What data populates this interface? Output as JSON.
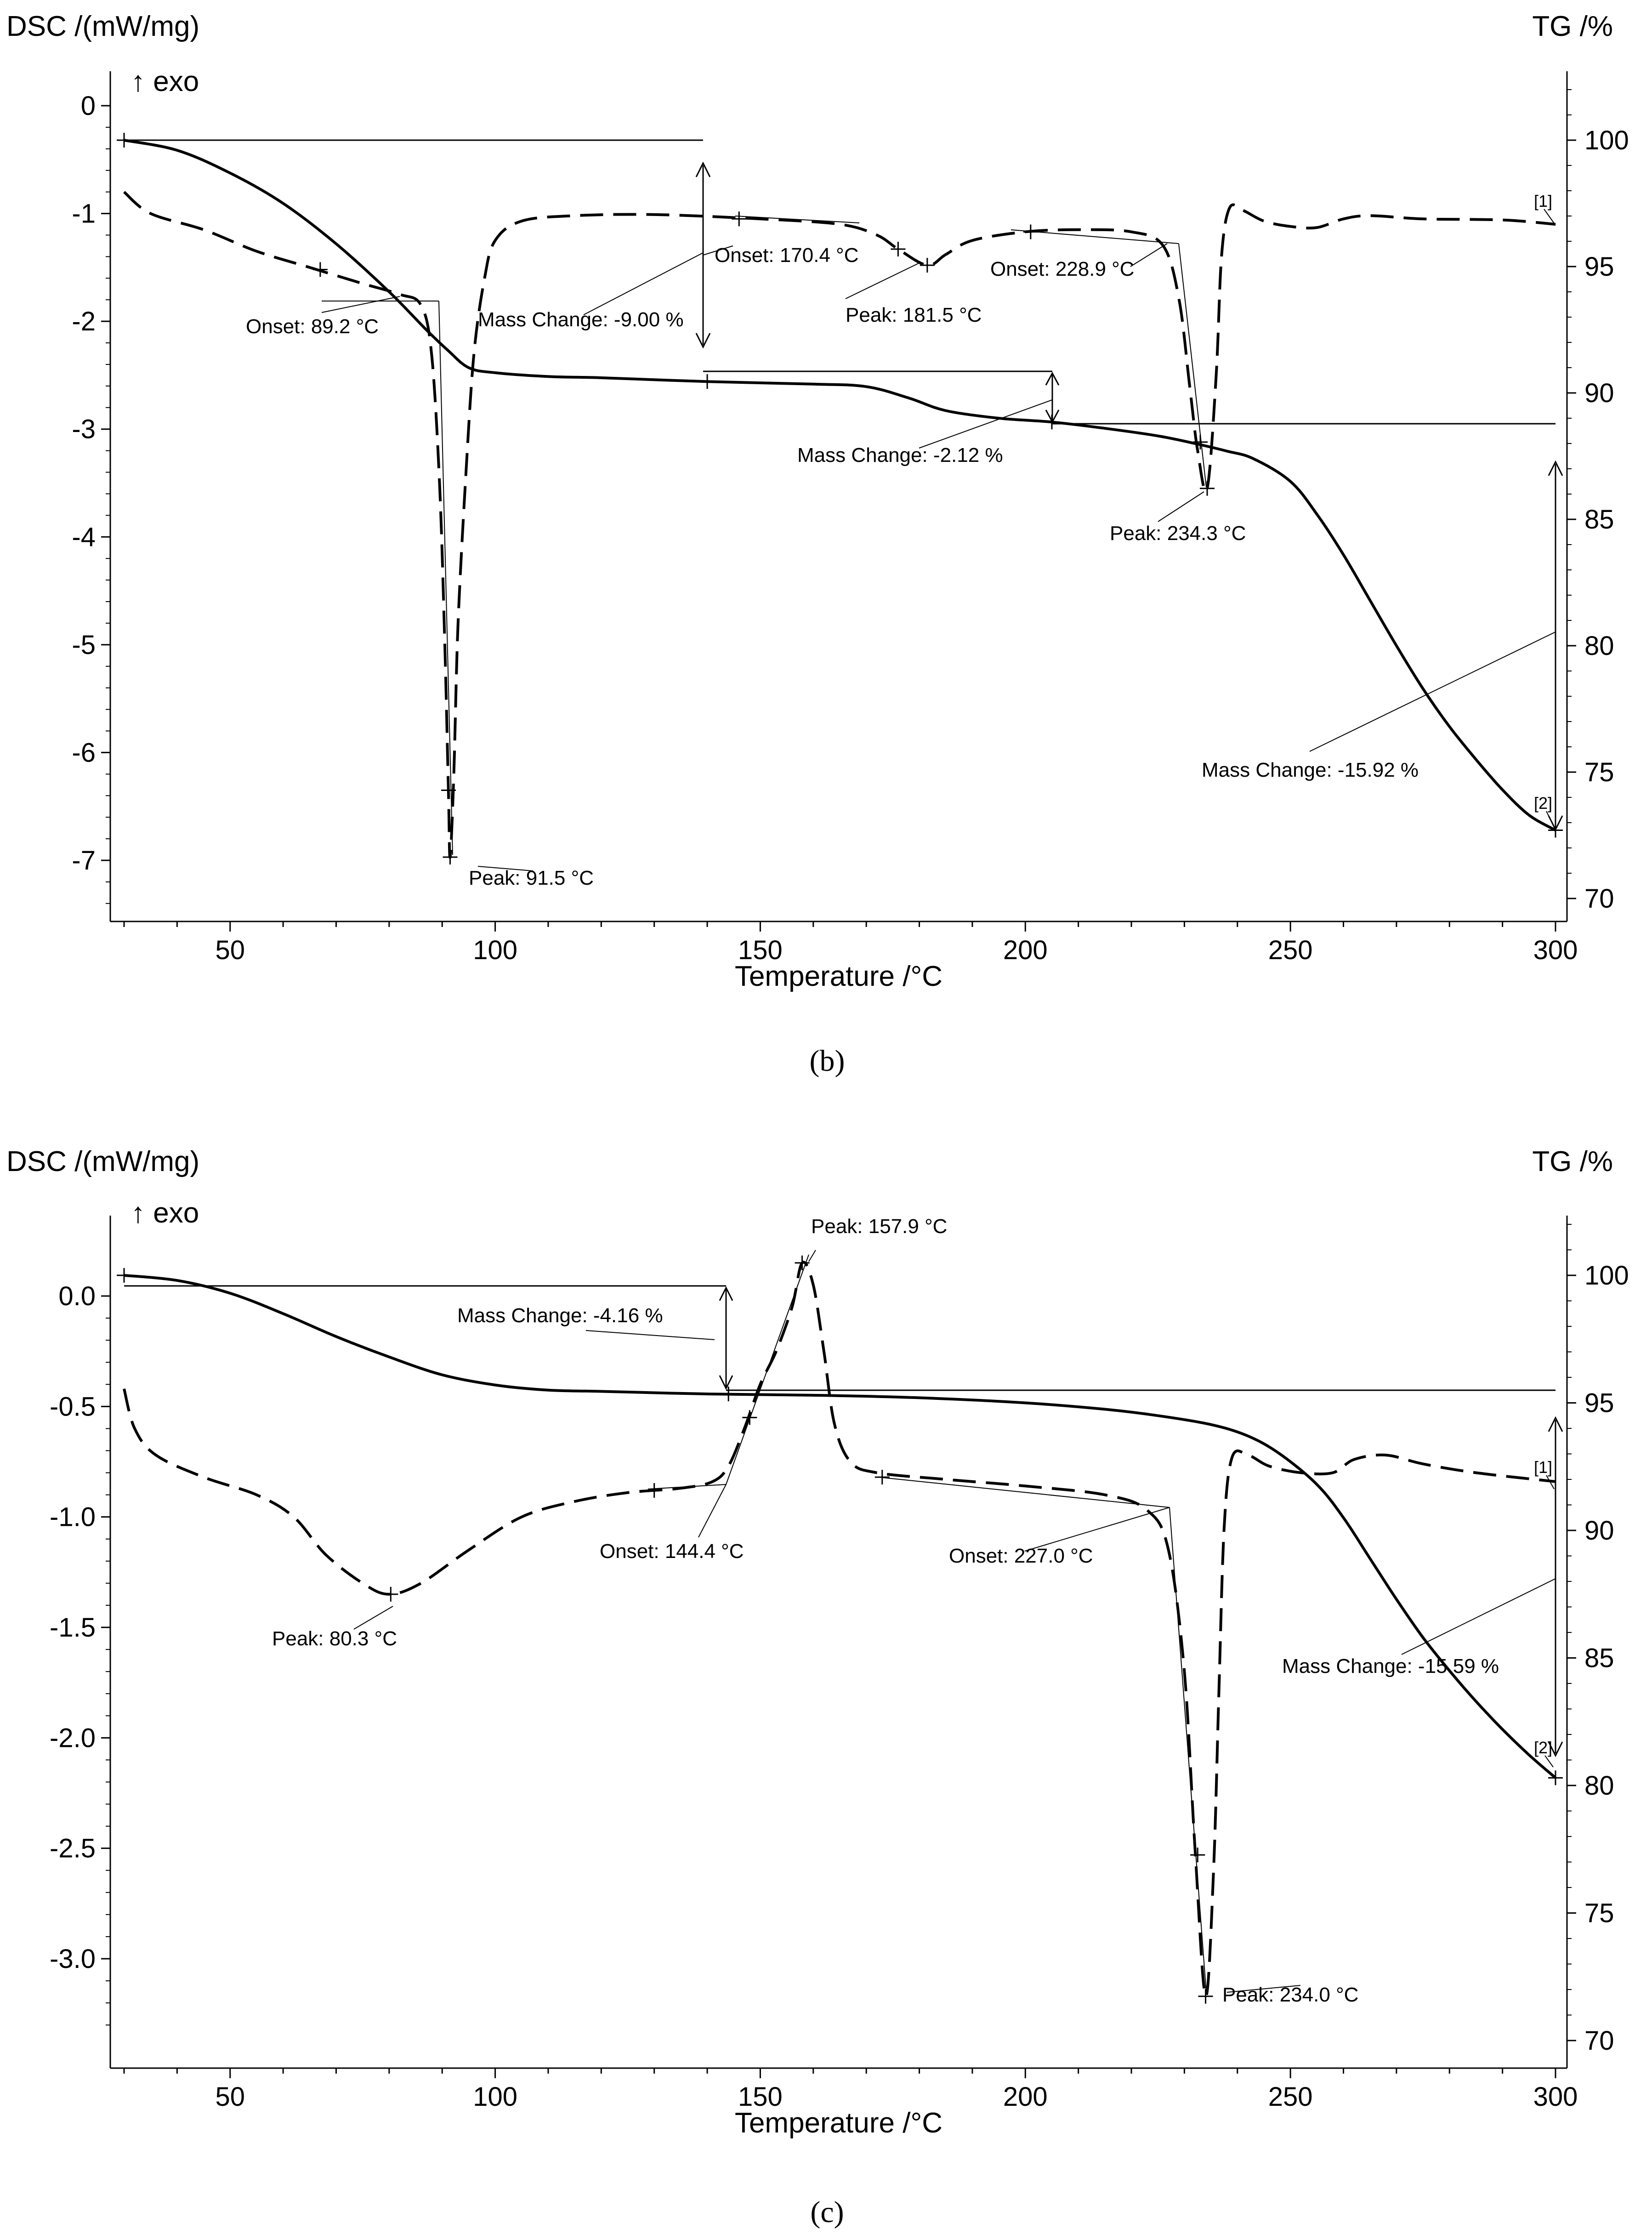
{
  "chart_data": [
    {
      "panel": "b",
      "caption": "(b)",
      "type": "line",
      "xlabel": "Temperature /°C",
      "ylabel_left": "DSC /(mW/mg)",
      "ylabel_right": "TG /%",
      "exo_label": "↑ exo",
      "xlim": [
        28,
        302
      ],
      "xticks": [
        50,
        100,
        150,
        200,
        250,
        300
      ],
      "ylim_left": [
        -7.45,
        0.3
      ],
      "yticks_left": [
        0,
        -1,
        -2,
        -3,
        -4,
        -5,
        -6,
        -7
      ],
      "ylim_right": [
        69.5,
        102.5
      ],
      "yticks_right": [
        70,
        75,
        80,
        85,
        90,
        95,
        100
      ],
      "series": [
        {
          "name": "DSC",
          "axis": "left",
          "style": "dashed",
          "points": [
            [
              30,
              -0.8
            ],
            [
              35,
              -1.0
            ],
            [
              45,
              -1.15
            ],
            [
              55,
              -1.35
            ],
            [
              65,
              -1.5
            ],
            [
              75,
              -1.65
            ],
            [
              82,
              -1.75
            ],
            [
              86,
              -1.85
            ],
            [
              88,
              -2.3
            ],
            [
              89.5,
              -3.5
            ],
            [
              90.5,
              -5.0
            ],
            [
              91.2,
              -6.4
            ],
            [
              91.5,
              -6.97
            ],
            [
              92.2,
              -6.2
            ],
            [
              93,
              -4.8
            ],
            [
              94.5,
              -3.4
            ],
            [
              96,
              -2.3
            ],
            [
              98,
              -1.6
            ],
            [
              100,
              -1.25
            ],
            [
              105,
              -1.07
            ],
            [
              115,
              -1.02
            ],
            [
              130,
              -1.01
            ],
            [
              150,
              -1.05
            ],
            [
              165,
              -1.1
            ],
            [
              172,
              -1.2
            ],
            [
              176,
              -1.33
            ],
            [
              181.5,
              -1.48
            ],
            [
              185,
              -1.38
            ],
            [
              190,
              -1.25
            ],
            [
              200,
              -1.17
            ],
            [
              210,
              -1.15
            ],
            [
              220,
              -1.17
            ],
            [
              226,
              -1.3
            ],
            [
              229,
              -1.8
            ],
            [
              231,
              -2.6
            ],
            [
              232.5,
              -3.2
            ],
            [
              234.3,
              -3.55
            ],
            [
              236,
              -2.5
            ],
            [
              237,
              -1.4
            ],
            [
              238.5,
              -0.95
            ],
            [
              241,
              -0.97
            ],
            [
              245,
              -1.07
            ],
            [
              250,
              -1.12
            ],
            [
              255,
              -1.13
            ],
            [
              260,
              -1.05
            ],
            [
              265,
              -1.02
            ],
            [
              275,
              -1.05
            ],
            [
              290,
              -1.06
            ],
            [
              300,
              -1.1
            ]
          ]
        },
        {
          "name": "TG",
          "axis": "right",
          "style": "solid",
          "points": [
            [
              30,
              100.0
            ],
            [
              40,
              99.6
            ],
            [
              50,
              98.7
            ],
            [
              60,
              97.5
            ],
            [
              70,
              95.9
            ],
            [
              80,
              94.0
            ],
            [
              87,
              92.5
            ],
            [
              91,
              91.7
            ],
            [
              95,
              91.0
            ],
            [
              100,
              90.8
            ],
            [
              110,
              90.65
            ],
            [
              120,
              90.6
            ],
            [
              140,
              90.45
            ],
            [
              160,
              90.35
            ],
            [
              170,
              90.25
            ],
            [
              178,
              89.8
            ],
            [
              185,
              89.3
            ],
            [
              195,
              89.0
            ],
            [
              205,
              88.85
            ],
            [
              215,
              88.6
            ],
            [
              225,
              88.3
            ],
            [
              232,
              88.0
            ],
            [
              238,
              87.7
            ],
            [
              243,
              87.4
            ],
            [
              250,
              86.5
            ],
            [
              255,
              85.2
            ],
            [
              260,
              83.6
            ],
            [
              265,
              81.8
            ],
            [
              270,
              80.0
            ],
            [
              275,
              78.3
            ],
            [
              280,
              76.8
            ],
            [
              285,
              75.5
            ],
            [
              290,
              74.3
            ],
            [
              295,
              73.3
            ],
            [
              300,
              72.7
            ]
          ]
        }
      ],
      "annotations": [
        {
          "text": "Onset: 89.2 °C"
        },
        {
          "text": "Peak: 91.5 °C"
        },
        {
          "text": "Mass Change: -9.00 %"
        },
        {
          "text": "Onset: 170.4 °C"
        },
        {
          "text": "Peak: 181.5 °C"
        },
        {
          "text": "Onset: 228.9 °C"
        },
        {
          "text": "Mass Change: -2.12 %"
        },
        {
          "text": "Peak: 234.3 °C"
        },
        {
          "text": "Mass Change: -15.92 %"
        },
        {
          "text": "[1]"
        },
        {
          "text": "[2]"
        }
      ]
    },
    {
      "panel": "c",
      "caption": "(c)",
      "type": "line",
      "xlabel": "Temperature /°C",
      "ylabel_left": "DSC /(mW/mg)",
      "ylabel_right": "TG /%",
      "exo_label": "↑ exo",
      "xlim": [
        28,
        302
      ],
      "xticks": [
        50,
        100,
        150,
        200,
        250,
        300
      ],
      "ylim_left": [
        -3.35,
        0.38
      ],
      "yticks_left": [
        "0.0",
        "-0.5",
        "-1.0",
        "-1.5",
        "-2.0",
        "-2.5",
        "-3.0"
      ],
      "ylim_right": [
        69.5,
        102.5
      ],
      "yticks_right": [
        70,
        75,
        80,
        85,
        90,
        95,
        100
      ],
      "series": [
        {
          "name": "DSC",
          "axis": "left",
          "style": "dashed",
          "points": [
            [
              30,
              -0.42
            ],
            [
              32,
              -0.6
            ],
            [
              36,
              -0.72
            ],
            [
              45,
              -0.82
            ],
            [
              55,
              -0.9
            ],
            [
              62,
              -1.0
            ],
            [
              68,
              -1.17
            ],
            [
              75,
              -1.3
            ],
            [
              80,
              -1.35
            ],
            [
              86,
              -1.3
            ],
            [
              95,
              -1.15
            ],
            [
              105,
              -1.0
            ],
            [
              115,
              -0.93
            ],
            [
              125,
              -0.89
            ],
            [
              135,
              -0.87
            ],
            [
              141,
              -0.84
            ],
            [
              144,
              -0.77
            ],
            [
              147,
              -0.6
            ],
            [
              150,
              -0.4
            ],
            [
              153,
              -0.25
            ],
            [
              156,
              -0.05
            ],
            [
              157.9,
              0.15
            ],
            [
              160,
              0.05
            ],
            [
              162,
              -0.25
            ],
            [
              164,
              -0.58
            ],
            [
              167,
              -0.75
            ],
            [
              172,
              -0.8
            ],
            [
              185,
              -0.83
            ],
            [
              200,
              -0.86
            ],
            [
              215,
              -0.9
            ],
            [
              223,
              -0.97
            ],
            [
              227,
              -1.15
            ],
            [
              230,
              -1.7
            ],
            [
              232,
              -2.5
            ],
            [
              234,
              -3.17
            ],
            [
              235.5,
              -2.6
            ],
            [
              236.5,
              -1.8
            ],
            [
              237.5,
              -1.05
            ],
            [
              239,
              -0.73
            ],
            [
              242,
              -0.72
            ],
            [
              246,
              -0.77
            ],
            [
              252,
              -0.8
            ],
            [
              258,
              -0.8
            ],
            [
              262,
              -0.74
            ],
            [
              268,
              -0.72
            ],
            [
              275,
              -0.76
            ],
            [
              285,
              -0.8
            ],
            [
              300,
              -0.84
            ]
          ]
        },
        {
          "name": "TG",
          "axis": "right",
          "style": "solid",
          "points": [
            [
              30,
              100.0
            ],
            [
              40,
              99.8
            ],
            [
              50,
              99.3
            ],
            [
              60,
              98.5
            ],
            [
              70,
              97.6
            ],
            [
              80,
              96.8
            ],
            [
              90,
              96.1
            ],
            [
              100,
              95.7
            ],
            [
              110,
              95.5
            ],
            [
              120,
              95.45
            ],
            [
              140,
              95.35
            ],
            [
              160,
              95.3
            ],
            [
              180,
              95.2
            ],
            [
              200,
              95.0
            ],
            [
              215,
              94.75
            ],
            [
              225,
              94.5
            ],
            [
              235,
              94.15
            ],
            [
              242,
              93.7
            ],
            [
              248,
              93.0
            ],
            [
              255,
              91.8
            ],
            [
              260,
              90.5
            ],
            [
              265,
              88.9
            ],
            [
              270,
              87.3
            ],
            [
              275,
              85.8
            ],
            [
              280,
              84.5
            ],
            [
              285,
              83.3
            ],
            [
              290,
              82.2
            ],
            [
              295,
              81.2
            ],
            [
              300,
              80.3
            ]
          ]
        }
      ],
      "annotations": [
        {
          "text": "Peak: 157.9 °C"
        },
        {
          "text": "Mass Change: -4.16 %"
        },
        {
          "text": "Onset: 144.4 °C"
        },
        {
          "text": "Peak: 80.3 °C"
        },
        {
          "text": "Onset: 227.0 °C"
        },
        {
          "text": "Peak: 234.0 °C"
        },
        {
          "text": "Mass Change: -15.59 %"
        },
        {
          "text": "[1]"
        },
        {
          "text": "[2]"
        }
      ]
    }
  ]
}
